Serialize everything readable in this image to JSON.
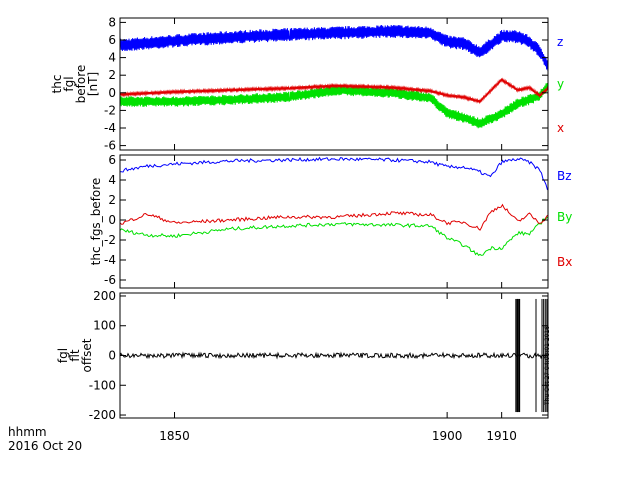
{
  "colors": {
    "red": "#e00000",
    "green": "#00e000",
    "blue": "#0000ff",
    "black": "#000000"
  },
  "chart_data": [
    {
      "type": "line",
      "panel": "top",
      "ylabel_lines": [
        "thc",
        "fgl",
        "before",
        "[nT]"
      ],
      "ylim": [
        -6.5,
        8.5
      ],
      "yticks": [
        -6,
        -4,
        -2,
        0,
        2,
        4,
        6,
        8
      ],
      "x": [
        1840,
        1850,
        1860,
        1870,
        1880,
        1890,
        1897,
        1900,
        1903,
        1906,
        1910,
        1913,
        1915,
        1917,
        1918.5
      ],
      "series": [
        {
          "name": "z",
          "color": "#0000ff",
          "band": 1.5,
          "values": [
            5.4,
            5.9,
            6.3,
            6.6,
            6.8,
            7.0,
            6.8,
            5.8,
            5.6,
            4.6,
            6.4,
            6.4,
            5.8,
            4.7,
            3.0
          ]
        },
        {
          "name": "y",
          "color": "#00e000",
          "band": 1.2,
          "values": [
            -1.0,
            -1.0,
            -0.8,
            -0.5,
            0.3,
            0.0,
            -0.6,
            -2.3,
            -2.8,
            -3.5,
            -2.4,
            -1.2,
            -0.8,
            -0.3,
            0.8
          ]
        },
        {
          "name": "x",
          "color": "#e00000",
          "band": 0.3,
          "values": [
            -0.2,
            0.1,
            0.3,
            0.5,
            0.8,
            0.6,
            0.2,
            -0.3,
            -0.5,
            -1.0,
            1.5,
            0.3,
            0.6,
            -0.3,
            0.5
          ]
        }
      ],
      "legend": [
        "z",
        "y",
        "x"
      ]
    },
    {
      "type": "line",
      "panel": "middle",
      "ylabel": "thc_fgs_before",
      "ylim": [
        -6.8,
        6.5
      ],
      "yticks": [
        -6,
        -4,
        -2,
        0,
        2,
        4,
        6
      ],
      "x": [
        1840,
        1845,
        1850,
        1860,
        1870,
        1880,
        1890,
        1897,
        1900,
        1903,
        1906,
        1908,
        1910,
        1913,
        1915,
        1917,
        1918.5
      ],
      "series": [
        {
          "name": "Bz",
          "color": "#0000ff",
          "values": [
            4.9,
            5.4,
            5.6,
            5.9,
            6.0,
            6.1,
            6.0,
            5.8,
            5.3,
            5.3,
            4.8,
            4.3,
            5.8,
            6.1,
            5.8,
            5.0,
            3.0
          ]
        },
        {
          "name": "By",
          "color": "#00e000",
          "values": [
            -1.0,
            -1.5,
            -1.6,
            -0.9,
            -0.6,
            -0.4,
            -0.5,
            -0.6,
            -1.8,
            -2.5,
            -3.6,
            -2.8,
            -2.8,
            -1.3,
            -1.4,
            -0.4,
            0.5
          ]
        },
        {
          "name": "Bx",
          "color": "#e00000",
          "values": [
            -0.4,
            0.6,
            -0.3,
            0.0,
            0.3,
            0.3,
            0.7,
            0.5,
            -0.3,
            -0.2,
            -0.9,
            0.8,
            1.5,
            -0.2,
            0.6,
            -0.3,
            0.4
          ]
        }
      ],
      "legend": [
        "Bz",
        "By",
        "Bx"
      ]
    },
    {
      "type": "line",
      "panel": "bottom",
      "ylabel_lines": [
        "fgl",
        "flt",
        "offset"
      ],
      "ylim": [
        -210,
        210
      ],
      "yticks": [
        -200,
        -100,
        0,
        100,
        200
      ],
      "noise_band": 8,
      "spikes_x": [
        1912.6,
        1912.8,
        1912.9,
        1913.0,
        1913.2,
        1913.3,
        1916.3,
        1917.4,
        1917.7,
        1918.0,
        1918.3
      ],
      "spike_range": [
        -190,
        190
      ],
      "series": [
        {
          "name": "",
          "color": "#000000"
        }
      ]
    }
  ],
  "xaxis": {
    "range": [
      1840,
      1918.5
    ],
    "ticks": [
      1850,
      1900,
      1910
    ],
    "tick_labels": [
      "1850",
      "1900",
      "1910"
    ]
  },
  "footer": {
    "line1": "hhmm",
    "line2": "2016 Oct 20"
  },
  "timestamp": "Thu Oct 27 04:08:01 2016"
}
